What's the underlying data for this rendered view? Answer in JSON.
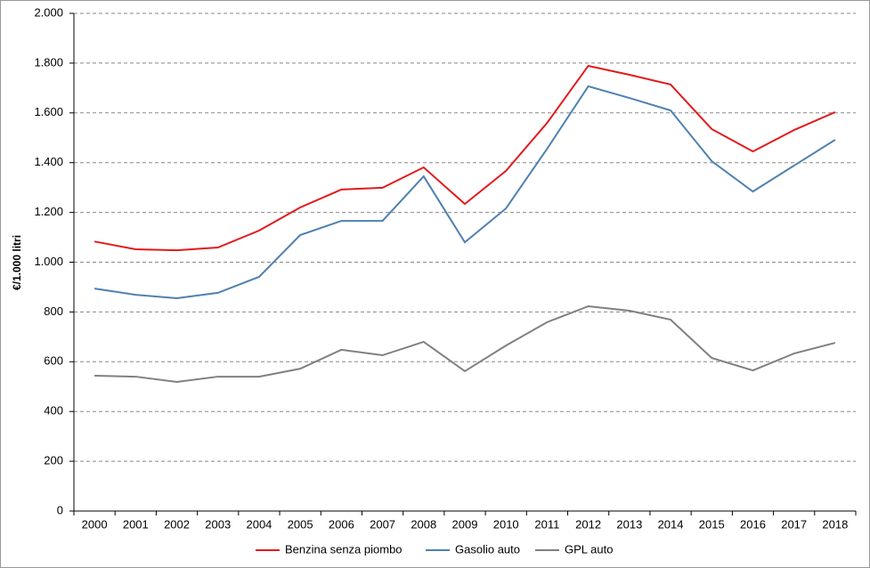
{
  "chart_data": {
    "type": "line",
    "y_label": "€/1.000 litri",
    "categories": [
      "2000",
      "2001",
      "2002",
      "2003",
      "2004",
      "2005",
      "2006",
      "2007",
      "2008",
      "2009",
      "2010",
      "2011",
      "2012",
      "2013",
      "2014",
      "2015",
      "2016",
      "2017",
      "2018"
    ],
    "series": [
      {
        "name": "Benzina senza piombo",
        "color": "#e31a1c",
        "values": [
          1083,
          1052,
          1048,
          1059,
          1127,
          1220,
          1292,
          1299,
          1381,
          1234,
          1367,
          1560,
          1789,
          1753,
          1714,
          1535,
          1445,
          1531,
          1603
        ]
      },
      {
        "name": "Gasolio auto",
        "color": "#4f81b0",
        "values": [
          894,
          869,
          855,
          877,
          941,
          1109,
          1166,
          1166,
          1345,
          1080,
          1216,
          1456,
          1707,
          1660,
          1610,
          1406,
          1284,
          1388,
          1492
        ]
      },
      {
        "name": "GPL auto",
        "color": "#808080",
        "values": [
          544,
          540,
          519,
          540,
          540,
          572,
          648,
          626,
          680,
          562,
          665,
          759,
          823,
          805,
          769,
          615,
          565,
          633,
          676
        ]
      }
    ],
    "ylim": [
      0,
      2000
    ],
    "yticks": [
      0,
      200,
      400,
      600,
      800,
      {
        "value": 1000,
        "label": "1.000"
      },
      {
        "value": 1200,
        "label": "1.200"
      },
      {
        "value": 1400,
        "label": "1.400"
      },
      {
        "value": 1600,
        "label": "1.600"
      },
      {
        "value": 1800,
        "label": "1.800"
      },
      {
        "value": 2000,
        "label": "2.000"
      }
    ],
    "grid": true,
    "legend": "bottom"
  }
}
